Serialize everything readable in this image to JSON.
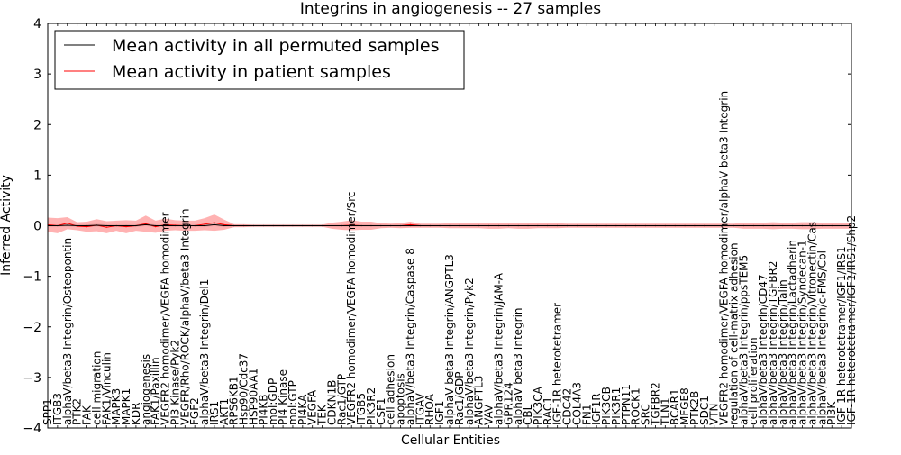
{
  "chart_data": {
    "type": "line",
    "title": "Integrins in angiogenesis -- 27 samples",
    "xlabel": "Cellular Entities",
    "ylabel": "Inferred Activity",
    "ylim": [
      -4,
      4
    ],
    "yticks": [
      "−4",
      "−3",
      "−2",
      "−1",
      "0",
      "1",
      "2",
      "3",
      "4"
    ],
    "legend": {
      "placement": "top-left",
      "entries": [
        {
          "label": "Mean activity in all permuted samples",
          "color": "#000000"
        },
        {
          "label": "Mean activity in patient samples",
          "color": "#ff0000"
        }
      ]
    },
    "categories": [
      "SPP1",
      "ITGB3",
      "alphaV/beta3 Integrin/Osteopontin",
      "PTK2",
      "FAK",
      "cell migration",
      "FAK1/Vinculin",
      "MAPK3",
      "MAPK1",
      "KDR",
      "angiogenesis",
      "FAK1/Paxillin",
      "VEGFR2 homodimer/VEGFA homodimer",
      "PI3 Kinase/Pyk2",
      "VEGFR/Rho/ROCK/alphaV/beta3 Integrin",
      "FGF2",
      "alphaV/beta3 Integrin/Del1",
      "IRS1",
      "AKT1",
      "RPS6KB1",
      "Hsp90/Cdc37",
      "HSP90AA1",
      "PI4KB",
      "mol:GDP",
      "PI4 Kinase",
      "mol:GTP",
      "PI4KA",
      "VEGFA",
      "TEK",
      "CDKN1B",
      "Rac1/GTP",
      "VEGFR2 homodimer/VEGFA homodimer/Src",
      "ITGB5",
      "PIK3R2",
      "CSF1",
      "cell adhesion",
      "apoptosis",
      "alphaV/beta3 Integrin/Caspase 8",
      "ITGAV",
      "RHOA",
      "IGF1",
      "alphaV beta3 Integrin/ANGPTL3",
      "Rac1/GDP",
      "alphaV/beta3 Integrin/Pyk2",
      "ANGPTL3",
      "VAV",
      "alphaV/beta3 Integrin/JAM-A",
      "GPR124",
      "alphaV beta3 Integrin",
      "CBL",
      "PIK3CA",
      "RAC1",
      "IGF-1R heterotetramer",
      "CDC42",
      "COL4A3",
      "FN1",
      "IGF1R",
      "PIK3CB",
      "PIK3R1",
      "PTPN11",
      "ROCK1",
      "SRC",
      "TGFBR2",
      "TLN1",
      "BCAR1",
      "MFGE8",
      "PTK2B",
      "SDC1",
      "VTN",
      "VEGFR2 homodimer/VEGFA homodimer/alphaV beta3 Integrin",
      "regulation of cell-matrix adhesion",
      "alphaV/beta3 Integrin/ppsTEM5",
      "cell proliferation",
      "alphaV/beta3 Integrin/CD47",
      "alphaV/beta3 Integrin/TGFBR2",
      "alphaV/beta3 Integrin/Talin",
      "alphaV/beta3 Integrin/Lactadherin",
      "alphaV/beta3 Integrin/Syndecan-1",
      "alphaV/beta3 Integrin/Vitronectin/Cas",
      "alphaV/beta3 Integrin/c-FMS/Cbl",
      "PI3K",
      "IGF-1R heterotetramer/IGF1/IRS1",
      "IGF-1R heterotetramer/IGF1/IRS1/Shp2"
    ],
    "series": [
      {
        "name": "Mean activity in all permuted samples",
        "color": "#000000",
        "values": [
          0.0,
          0.0,
          0.01,
          0.0,
          0.0,
          0.01,
          0.0,
          0.0,
          0.0,
          0.0,
          0.02,
          0.0,
          0.0,
          0.0,
          0.0,
          0.0,
          0.0,
          0.02,
          0.0,
          0.0,
          0.0,
          0.0,
          0.0,
          0.0,
          0.0,
          0.0,
          0.0,
          0.0,
          0.0,
          0.0,
          0.0,
          0.0,
          0.0,
          0.0,
          0.0,
          0.0,
          0.0,
          0.0,
          0.0,
          0.0,
          0.0,
          0.0,
          0.0,
          0.0,
          0.0,
          0.0,
          0.0,
          0.0,
          0.0,
          0.0,
          0.0,
          0.0,
          0.0,
          0.0,
          0.0,
          0.0,
          0.0,
          0.0,
          0.0,
          0.0,
          0.0,
          0.0,
          0.0,
          0.0,
          0.0,
          0.0,
          0.0,
          0.0,
          0.0,
          0.0,
          0.0,
          0.0,
          0.0,
          0.0,
          0.0,
          0.0,
          0.0,
          0.0,
          0.0,
          0.0,
          0.0,
          0.0,
          0.0
        ],
        "band": 0.03
      },
      {
        "name": "Mean activity in patient samples",
        "color": "#ff0000",
        "values": [
          0.02,
          0.0,
          0.05,
          -0.01,
          -0.02,
          0.01,
          -0.03,
          0.0,
          -0.02,
          0.0,
          0.04,
          -0.02,
          0.02,
          0.01,
          0.0,
          0.0,
          0.03,
          0.06,
          0.02,
          0.0,
          0.0,
          0.0,
          0.0,
          0.0,
          0.0,
          0.0,
          0.0,
          0.0,
          0.0,
          0.0,
          0.0,
          0.01,
          0.0,
          0.0,
          0.0,
          0.0,
          0.0,
          0.02,
          0.0,
          0.0,
          0.0,
          0.0,
          0.0,
          0.0,
          0.0,
          0.0,
          0.0,
          0.0,
          0.0,
          0.0,
          0.0,
          0.0,
          0.0,
          0.0,
          0.0,
          0.0,
          0.0,
          0.0,
          0.0,
          0.0,
          0.0,
          0.0,
          0.0,
          0.0,
          0.0,
          0.0,
          0.0,
          0.0,
          0.0,
          0.0,
          0.0,
          0.0,
          0.0,
          0.0,
          0.0,
          0.0,
          0.0,
          0.0,
          0.0,
          0.0,
          0.0,
          0.0,
          0.0
        ],
        "band": [
          0.14,
          0.15,
          0.12,
          0.08,
          0.1,
          0.12,
          0.12,
          0.1,
          0.13,
          0.1,
          0.16,
          0.12,
          0.12,
          0.1,
          0.1,
          0.1,
          0.12,
          0.16,
          0.1,
          0.03,
          0.03,
          0.02,
          0.02,
          0.02,
          0.02,
          0.02,
          0.02,
          0.02,
          0.02,
          0.06,
          0.08,
          0.1,
          0.08,
          0.08,
          0.05,
          0.04,
          0.05,
          0.06,
          0.04,
          0.04,
          0.04,
          0.05,
          0.05,
          0.05,
          0.05,
          0.06,
          0.06,
          0.05,
          0.06,
          0.06,
          0.05,
          0.05,
          0.05,
          0.04,
          0.04,
          0.04,
          0.04,
          0.04,
          0.04,
          0.04,
          0.04,
          0.04,
          0.04,
          0.04,
          0.04,
          0.04,
          0.04,
          0.04,
          0.04,
          0.04,
          0.04,
          0.06,
          0.06,
          0.06,
          0.07,
          0.06,
          0.06,
          0.07,
          0.07,
          0.06,
          0.06,
          0.06,
          0.06
        ]
      }
    ]
  }
}
